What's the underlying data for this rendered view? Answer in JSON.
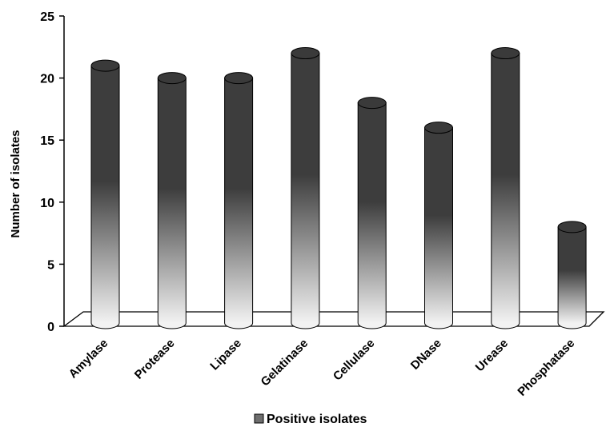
{
  "chart_data": {
    "type": "bar",
    "style": "3d-cylinder",
    "title": "",
    "xlabel": "",
    "ylabel": "Number of isolates",
    "ylim": [
      0,
      25
    ],
    "yticks": [
      0,
      5,
      10,
      15,
      20,
      25
    ],
    "grid": false,
    "legend_position": "bottom",
    "categories": [
      "Amylase",
      "Protease",
      "Lipase",
      "Gelatinase",
      "Cellulase",
      "DNase",
      "Urease",
      "Phosphatase"
    ],
    "series": [
      {
        "name": "Positive isolates",
        "values": [
          21,
          20,
          20,
          22,
          18,
          16,
          22,
          8
        ],
        "color_top": "#3d3d3d",
        "color_bottom": "#f2f2f2"
      }
    ]
  }
}
